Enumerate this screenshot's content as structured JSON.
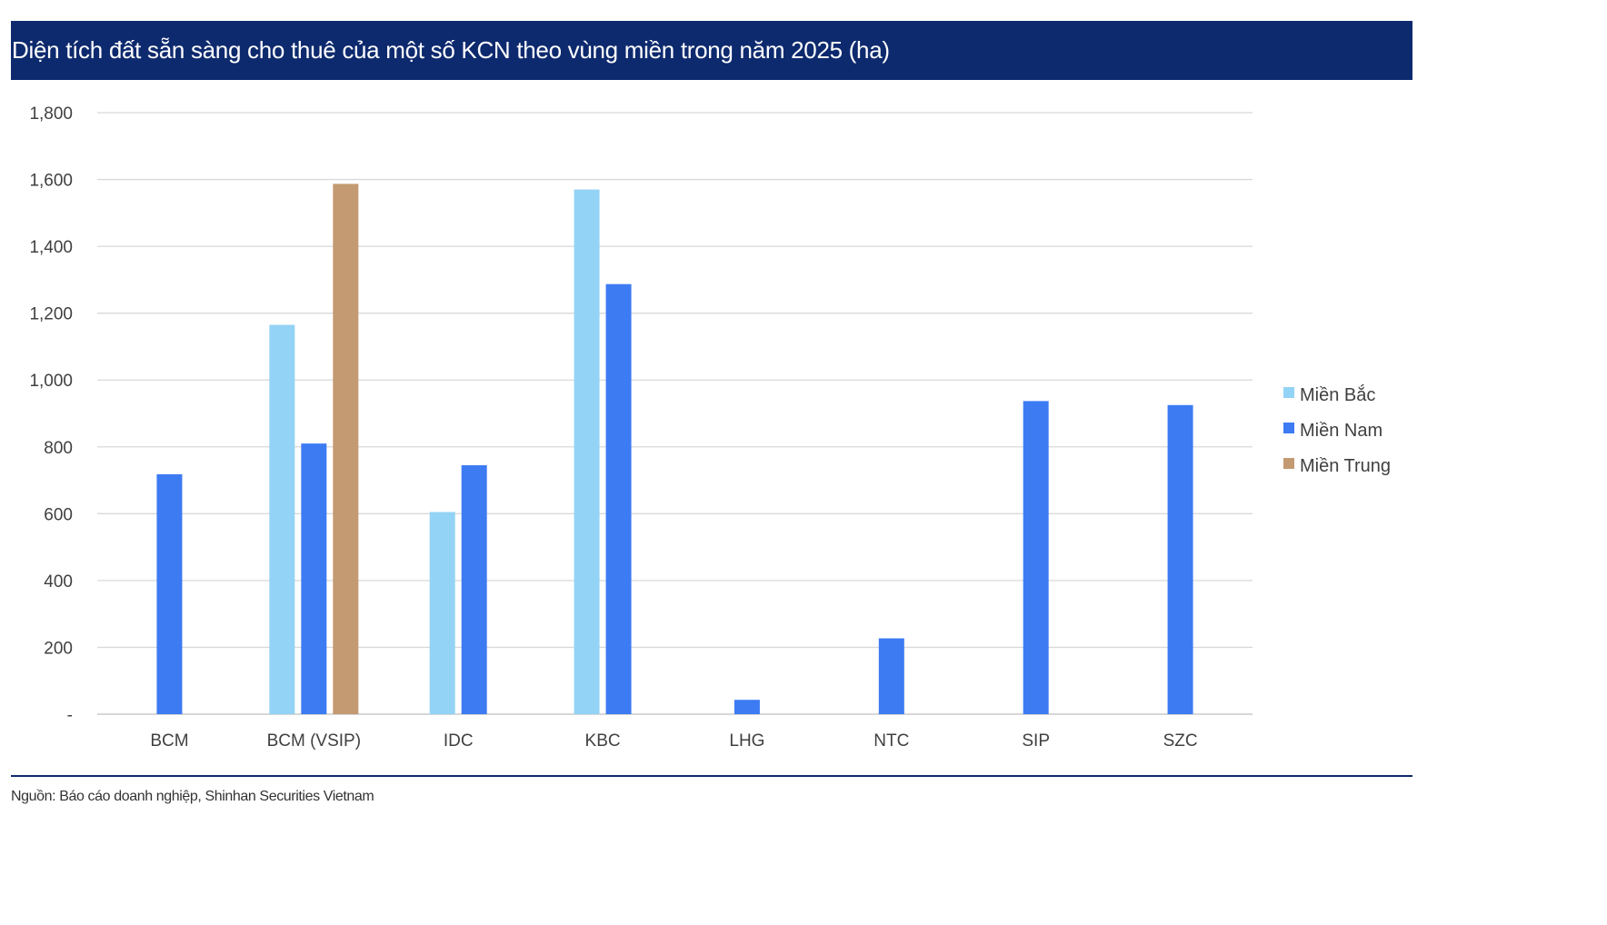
{
  "header": {
    "title": "Diện tích đất sẵn sàng cho thuê của một số KCN theo vùng miền trong năm 2025 (ha)"
  },
  "footer": {
    "source": "Nguồn: Báo cáo doanh nghiệp, Shinhan Securities Vietnam"
  },
  "chart_data": {
    "type": "bar",
    "title": "Diện tích đất sẵn sàng cho thuê của một số KCN theo vùng miền trong năm 2025 (ha)",
    "xlabel": "",
    "ylabel": "",
    "ylim": [
      0,
      1800
    ],
    "yticks": [
      0,
      200,
      400,
      600,
      800,
      1000,
      1200,
      1400,
      1600,
      1800
    ],
    "ytick_labels": [
      "-",
      "200",
      "400",
      "600",
      "800",
      "1,000",
      "1,200",
      "1,400",
      "1,600",
      "1,800"
    ],
    "grid": true,
    "legend_position": "right",
    "categories": [
      "BCM",
      "BCM (VSIP)",
      "IDC",
      "KBC",
      "LHG",
      "NTC",
      "SIP",
      "SZC"
    ],
    "series": [
      {
        "name": "Miền Bắc",
        "color": "#93d3f5",
        "values": [
          null,
          1165,
          605,
          1570,
          null,
          null,
          null,
          null
        ]
      },
      {
        "name": "Miền Nam",
        "color": "#3d7bf3",
        "values": [
          718,
          810,
          745,
          1287,
          43,
          227,
          937,
          925
        ]
      },
      {
        "name": "Miền Trung",
        "color": "#c39a72",
        "values": [
          null,
          1587,
          null,
          null,
          null,
          null,
          null,
          null
        ]
      }
    ]
  }
}
